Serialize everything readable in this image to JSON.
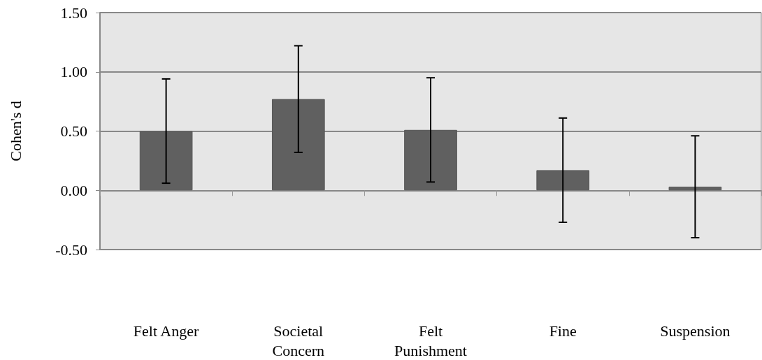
{
  "chart_data": {
    "type": "bar",
    "ylabel": "Cohen's d",
    "categories": [
      "Felt Anger",
      "Societal\nConcern",
      "Felt\nPunishment",
      "Fine",
      "Suspension"
    ],
    "values": [
      0.5,
      0.77,
      0.51,
      0.17,
      0.03
    ],
    "errors": [
      [
        0.06,
        0.94
      ],
      [
        0.32,
        1.22
      ],
      [
        0.07,
        0.95
      ],
      [
        -0.27,
        0.61
      ],
      [
        -0.4,
        0.46
      ]
    ],
    "color": "#606060",
    "ylim": [
      -0.5,
      1.5
    ],
    "yticks": [
      {
        "value": -0.5,
        "label": "-0.50"
      },
      {
        "value": 0,
        "label": "0.00"
      },
      {
        "value": 0.5,
        "label": "0.50"
      },
      {
        "value": 1,
        "label": "1.00"
      },
      {
        "value": 1.5,
        "label": "1.50"
      }
    ],
    "grid": "y"
  }
}
